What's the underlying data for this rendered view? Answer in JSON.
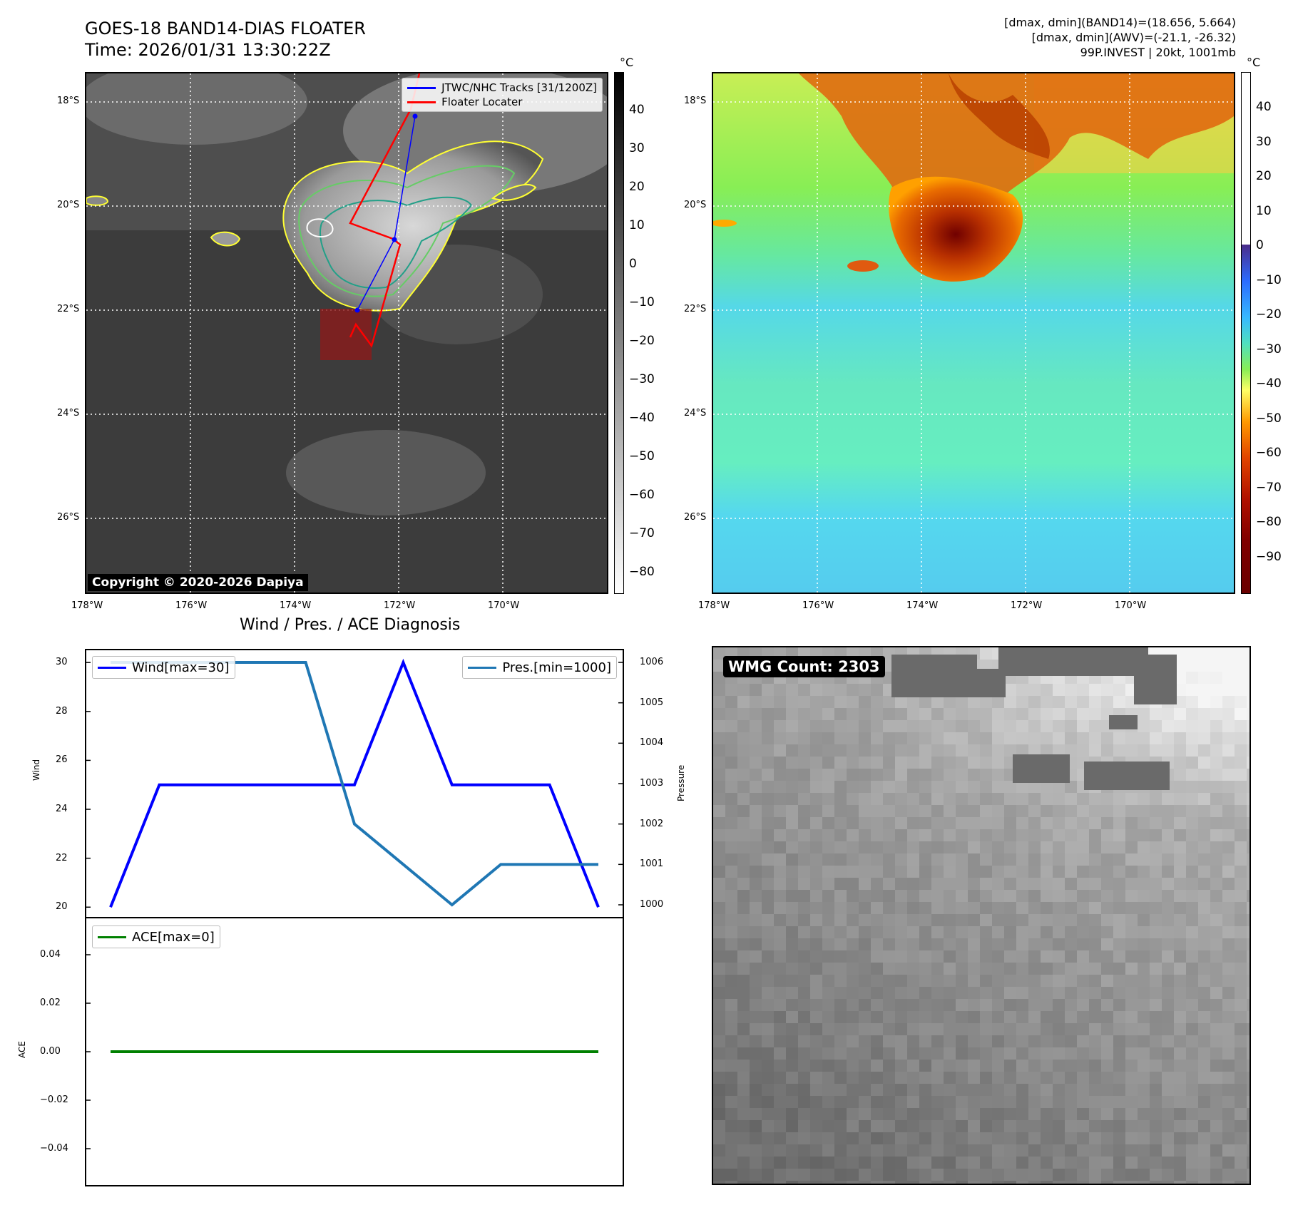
{
  "header": {
    "title": "GOES-18 BAND14-DIAS FLOATER",
    "time": "Time: 2026/01/31 13:30:22Z",
    "right_line1": "[dmax, dmin](BAND14)=(18.656, 5.664)",
    "right_line2": "[dmax, dmin](AWV)=(-21.1, -26.32)",
    "right_line3": "99P.INVEST | 20kt, 1001mb"
  },
  "map": {
    "lat_labels": [
      "18°S",
      "20°S",
      "22°S",
      "24°S",
      "26°S"
    ],
    "lon_labels": [
      "178°W",
      "176°W",
      "174°W",
      "172°W",
      "170°W"
    ],
    "copyright": "Copyright © 2020-2026 Dapiya",
    "legend": {
      "tracks": "JTWC/NHC Tracks [31/1200Z]",
      "floater": "Floater Locater"
    },
    "track_color": "#0000ff",
    "floater_color": "#ff0000"
  },
  "colorbar_ir": {
    "unit": "°C",
    "ticks": [
      "40",
      "30",
      "20",
      "10",
      "0",
      "−10",
      "−20",
      "−30",
      "−40",
      "−50",
      "−60",
      "−70",
      "−80"
    ]
  },
  "colorbar_awv": {
    "unit": "°C",
    "ticks": [
      "40",
      "30",
      "20",
      "10",
      "0",
      "−10",
      "−20",
      "−30",
      "−40",
      "−50",
      "−60",
      "−70",
      "−80",
      "−90"
    ]
  },
  "diagnosis": {
    "title": "Wind / Pres. / ACE Diagnosis",
    "wind_legend": "Wind[max=30]",
    "pres_legend": "Pres.[min=1000]",
    "ace_legend": "ACE[max=0]",
    "wind_label": "Wind",
    "pres_label": "Pressure",
    "ace_label": "ACE",
    "wind_ticks": [
      "30",
      "28",
      "26",
      "24",
      "22",
      "20"
    ],
    "pres_ticks": [
      "1006",
      "1005",
      "1004",
      "1003",
      "1002",
      "1001",
      "1000"
    ],
    "ace_ticks": [
      "0.04",
      "0.02",
      "0.00",
      "−0.02",
      "−0.04"
    ],
    "wind_color": "#0000ff",
    "pres_color": "#1f77b4",
    "ace_color": "#008000"
  },
  "chart_data": [
    {
      "type": "line",
      "title": "Wind / Pres. / ACE Diagnosis",
      "x": [
        0,
        1,
        2,
        3,
        4,
        5,
        6,
        7,
        8,
        9,
        10
      ],
      "series": [
        {
          "name": "Wind[max=30]",
          "axis": "left",
          "values": [
            20,
            25,
            25,
            25,
            25,
            25,
            30,
            25,
            25,
            25,
            20
          ]
        },
        {
          "name": "Pres.[min=1000]",
          "axis": "right",
          "values": [
            1006,
            1006,
            1006,
            1006,
            1006,
            1002,
            1001,
            1000,
            1001,
            1001,
            1001
          ]
        }
      ],
      "ylabel": "Wind",
      "ylim": [
        19.6,
        30.5
      ],
      "y2label": "Pressure",
      "y2lim": [
        999.7,
        1006.3
      ]
    },
    {
      "type": "line",
      "x": [
        0,
        1,
        2,
        3,
        4,
        5,
        6,
        7,
        8,
        9,
        10
      ],
      "series": [
        {
          "name": "ACE[max=0]",
          "values": [
            0,
            0,
            0,
            0,
            0,
            0,
            0,
            0,
            0,
            0,
            0
          ]
        }
      ],
      "ylabel": "ACE",
      "ylim": [
        -0.055,
        0.055
      ]
    }
  ],
  "wmg": {
    "count_label": "WMG Count: 2303"
  }
}
